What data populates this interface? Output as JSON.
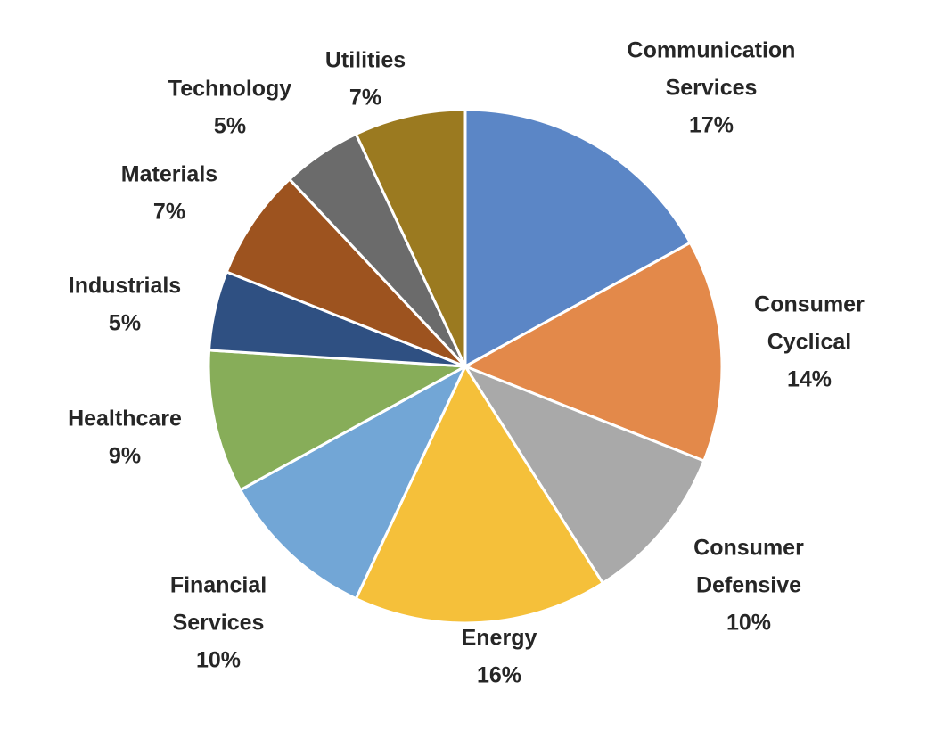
{
  "chart_data": {
    "type": "pie",
    "start_angle_deg": 0,
    "direction": "clockwise",
    "slices": [
      {
        "label_lines": [
          "Communication",
          "Services"
        ],
        "percent_label": "17%",
        "value": 17,
        "color": "#5b86c6"
      },
      {
        "label_lines": [
          "Consumer",
          "Cyclical"
        ],
        "percent_label": "14%",
        "value": 14,
        "color": "#e3894a"
      },
      {
        "label_lines": [
          "Consumer",
          "Defensive"
        ],
        "percent_label": "10%",
        "value": 10,
        "color": "#a9a9a9"
      },
      {
        "label_lines": [
          "Energy"
        ],
        "percent_label": "16%",
        "value": 16,
        "color": "#f5c03a"
      },
      {
        "label_lines": [
          "Financial",
          "Services"
        ],
        "percent_label": "10%",
        "value": 10,
        "color": "#72a6d6"
      },
      {
        "label_lines": [
          "Healthcare"
        ],
        "percent_label": "9%",
        "value": 9,
        "color": "#87ad59"
      },
      {
        "label_lines": [
          "Industrials"
        ],
        "percent_label": "5%",
        "value": 5,
        "color": "#2f5082"
      },
      {
        "label_lines": [
          "Materials"
        ],
        "percent_label": "7%",
        "value": 7,
        "color": "#9d531f"
      },
      {
        "label_lines": [
          "Technology"
        ],
        "percent_label": "5%",
        "value": 5,
        "color": "#6b6b6b"
      },
      {
        "label_lines": [
          "Utilities"
        ],
        "percent_label": "7%",
        "value": 7,
        "color": "#9b7a20"
      }
    ]
  }
}
